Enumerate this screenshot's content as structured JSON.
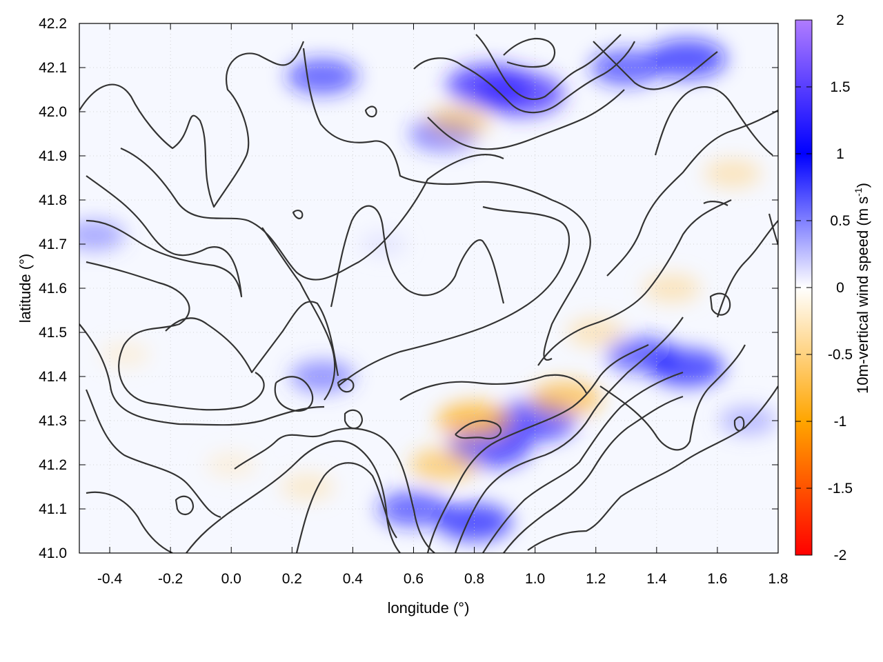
{
  "chart_data": {
    "type": "heatmap",
    "title": "",
    "xlabel": "longitude (°)",
    "ylabel": "latitude (°)",
    "xlim": [
      -0.5,
      1.8
    ],
    "ylim": [
      41.0,
      42.2
    ],
    "x_ticks": [
      -0.4,
      -0.2,
      0.0,
      0.2,
      0.4,
      0.6,
      0.8,
      1.0,
      1.2,
      1.4,
      1.6,
      1.8
    ],
    "x_tick_labels": [
      "-0.4",
      "-0.2",
      "0.0",
      "0.2",
      "0.4",
      "0.6",
      "0.8",
      "1.0",
      "1.2",
      "1.4",
      "1.6",
      "1.8"
    ],
    "y_ticks": [
      41.0,
      41.1,
      41.2,
      41.3,
      41.4,
      41.5,
      41.6,
      41.7,
      41.8,
      41.9,
      42.0,
      42.1,
      42.2
    ],
    "y_tick_labels": [
      "41.0",
      "41.1",
      "41.2",
      "41.3",
      "41.4",
      "41.5",
      "41.6",
      "41.7",
      "41.8",
      "41.9",
      "42.0",
      "42.1",
      "42.2"
    ],
    "grid": true,
    "colorbar": {
      "label_prefix": "10m-vertical wind speed (m s",
      "label_exponent": "-1",
      "label_suffix": ")",
      "range": [
        -2,
        2
      ],
      "ticks": [
        2,
        1.5,
        1,
        0.5,
        0,
        -0.5,
        -1,
        -1.5,
        -2
      ],
      "tick_labels": [
        "2",
        "1.5",
        "1",
        "0.5",
        "0",
        "-0.5",
        "-1",
        "-1.5",
        "-2"
      ],
      "colors": [
        "#ff0000",
        "#ffa500",
        "#ffffff",
        "#0000ff",
        "#b07cff"
      ]
    },
    "field_features": [
      {
        "lon": 0.95,
        "lat": 42.04,
        "value": 1.4
      },
      {
        "lon": 0.85,
        "lat": 42.06,
        "value": 1.3
      },
      {
        "lon": 0.3,
        "lat": 42.08,
        "value": 0.9
      },
      {
        "lon": 1.5,
        "lat": 42.12,
        "value": 1.1
      },
      {
        "lon": 1.3,
        "lat": 42.1,
        "value": 0.9
      },
      {
        "lon": 0.7,
        "lat": 41.95,
        "value": 0.8
      },
      {
        "lon": 0.75,
        "lat": 41.98,
        "value": -0.7
      },
      {
        "lon": 1.65,
        "lat": 41.86,
        "value": -0.5
      },
      {
        "lon": 1.45,
        "lat": 41.6,
        "value": -0.5
      },
      {
        "lon": 1.35,
        "lat": 41.45,
        "value": 0.9
      },
      {
        "lon": 1.5,
        "lat": 41.42,
        "value": 1.0
      },
      {
        "lon": 1.2,
        "lat": 41.5,
        "value": -0.5
      },
      {
        "lon": 0.85,
        "lat": 41.24,
        "value": 1.2
      },
      {
        "lon": 1.0,
        "lat": 41.3,
        "value": 1.2
      },
      {
        "lon": 0.8,
        "lat": 41.3,
        "value": -1.0
      },
      {
        "lon": 1.1,
        "lat": 41.35,
        "value": -0.9
      },
      {
        "lon": 0.7,
        "lat": 41.2,
        "value": -0.8
      },
      {
        "lon": 0.6,
        "lat": 41.1,
        "value": 0.9
      },
      {
        "lon": 0.8,
        "lat": 41.07,
        "value": 1.0
      },
      {
        "lon": 0.25,
        "lat": 41.15,
        "value": -0.4
      },
      {
        "lon": 0.0,
        "lat": 41.2,
        "value": -0.3
      },
      {
        "lon": -0.35,
        "lat": 41.45,
        "value": -0.3
      },
      {
        "lon": -0.45,
        "lat": 41.72,
        "value": 0.6
      },
      {
        "lon": 0.3,
        "lat": 41.4,
        "value": 0.7
      },
      {
        "lon": 1.7,
        "lat": 41.3,
        "value": 0.5
      },
      {
        "lon": 0.5,
        "lat": 41.7,
        "value": 0.2
      }
    ]
  }
}
